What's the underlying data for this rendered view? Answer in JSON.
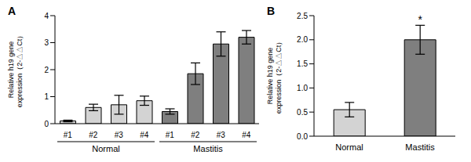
{
  "chart_data": [
    {
      "type": "bar",
      "title": "A",
      "categories": [
        "#1",
        "#2",
        "#3",
        "#4",
        "#1",
        "#2",
        "#3",
        "#4"
      ],
      "group_labels": [
        "Normal",
        "Normal",
        "Normal",
        "Normal",
        "Mastitis",
        "Mastitis",
        "Mastitis",
        "Mastitis"
      ],
      "values": [
        0.1,
        0.6,
        0.7,
        0.85,
        0.45,
        1.85,
        2.95,
        3.2
      ],
      "errors": [
        0.03,
        0.12,
        0.35,
        0.17,
        0.1,
        0.4,
        0.45,
        0.25
      ],
      "colors": [
        "#d3d3d3",
        "#d3d3d3",
        "#d3d3d3",
        "#d3d3d3",
        "#7f7f7f",
        "#7f7f7f",
        "#7f7f7f",
        "#7f7f7f"
      ],
      "y_label": [
        "Relative h19 gene",
        "expression（2-△△Ct）"
      ],
      "ylim": [
        0,
        4
      ],
      "yticks": [
        0,
        1,
        2,
        3,
        4
      ]
    },
    {
      "type": "bar",
      "title": "B",
      "categories": [
        "Normal",
        "Mastitis"
      ],
      "values": [
        0.55,
        2.0
      ],
      "errors": [
        0.15,
        0.3
      ],
      "colors": [
        "#d3d3d3",
        "#7f7f7f"
      ],
      "annotations": [
        null,
        "*"
      ],
      "y_label": [
        "Relative h19 gene",
        "expression（2-△△Ct）"
      ],
      "ylim": [
        0,
        2.5
      ],
      "yticks": [
        {
          "value": 0,
          "label": "0.0"
        },
        0.5,
        {
          "value": 1,
          "label": "1.0"
        },
        1.5,
        {
          "value": 2,
          "label": "2.0"
        },
        2.5
      ]
    }
  ]
}
